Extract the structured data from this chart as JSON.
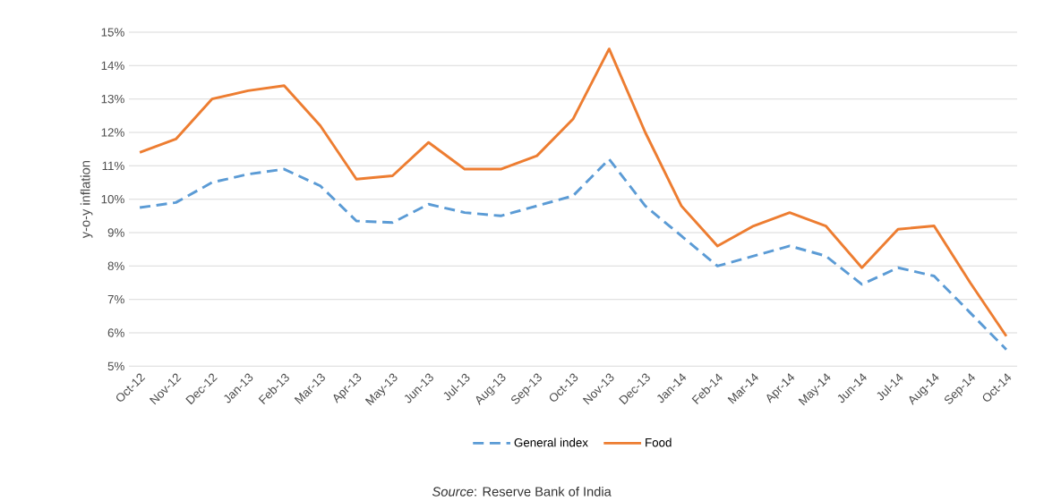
{
  "chart_data": {
    "type": "line",
    "ylabel": "y-o-y inflation",
    "categories": [
      "Oct-12",
      "Nov-12",
      "Dec-12",
      "Jan-13",
      "Feb-13",
      "Mar-13",
      "Apr-13",
      "May-13",
      "Jun-13",
      "Jul-13",
      "Aug-13",
      "Sep-13",
      "Oct-13",
      "Nov-13",
      "Dec-13",
      "Jan-14",
      "Feb-14",
      "Mar-14",
      "Apr-14",
      "May-14",
      "Jun-14",
      "Jul-14",
      "Aug-14",
      "Sep-14",
      "Oct-14"
    ],
    "series": [
      {
        "name": "General index",
        "color": "#5b9bd5",
        "line_style": "dashed",
        "values": [
          9.75,
          9.9,
          10.5,
          10.75,
          10.9,
          10.4,
          9.35,
          9.3,
          9.85,
          9.6,
          9.5,
          9.8,
          10.1,
          11.2,
          9.8,
          8.9,
          8.0,
          8.3,
          8.6,
          8.3,
          7.45,
          7.95,
          7.7,
          6.6,
          5.5
        ]
      },
      {
        "name": "Food",
        "color": "#ed7d31",
        "line_style": "solid",
        "values": [
          11.4,
          11.8,
          13.0,
          13.25,
          13.4,
          12.2,
          10.6,
          10.7,
          11.7,
          10.9,
          10.9,
          11.3,
          12.4,
          14.5,
          12.0,
          9.8,
          8.6,
          9.2,
          9.6,
          9.2,
          7.95,
          9.1,
          9.2,
          7.5,
          5.9
        ]
      }
    ],
    "ylim": [
      5,
      15
    ],
    "yticks": [
      {
        "value": 5,
        "label": "5%"
      },
      {
        "value": 6,
        "label": "6%"
      },
      {
        "value": 7,
        "label": "7%"
      },
      {
        "value": 8,
        "label": "8%"
      },
      {
        "value": 9,
        "label": "9%"
      },
      {
        "value": 10,
        "label": "10%"
      },
      {
        "value": 11,
        "label": "11%"
      },
      {
        "value": 12,
        "label": "12%"
      },
      {
        "value": 13,
        "label": "13%"
      },
      {
        "value": 14,
        "label": "14%"
      },
      {
        "value": 15,
        "label": "15%"
      }
    ],
    "grid": "y",
    "legend": "bottom",
    "marker": "none",
    "annotations": [
      "*Source*:  Reserve Bank of India"
    ]
  }
}
